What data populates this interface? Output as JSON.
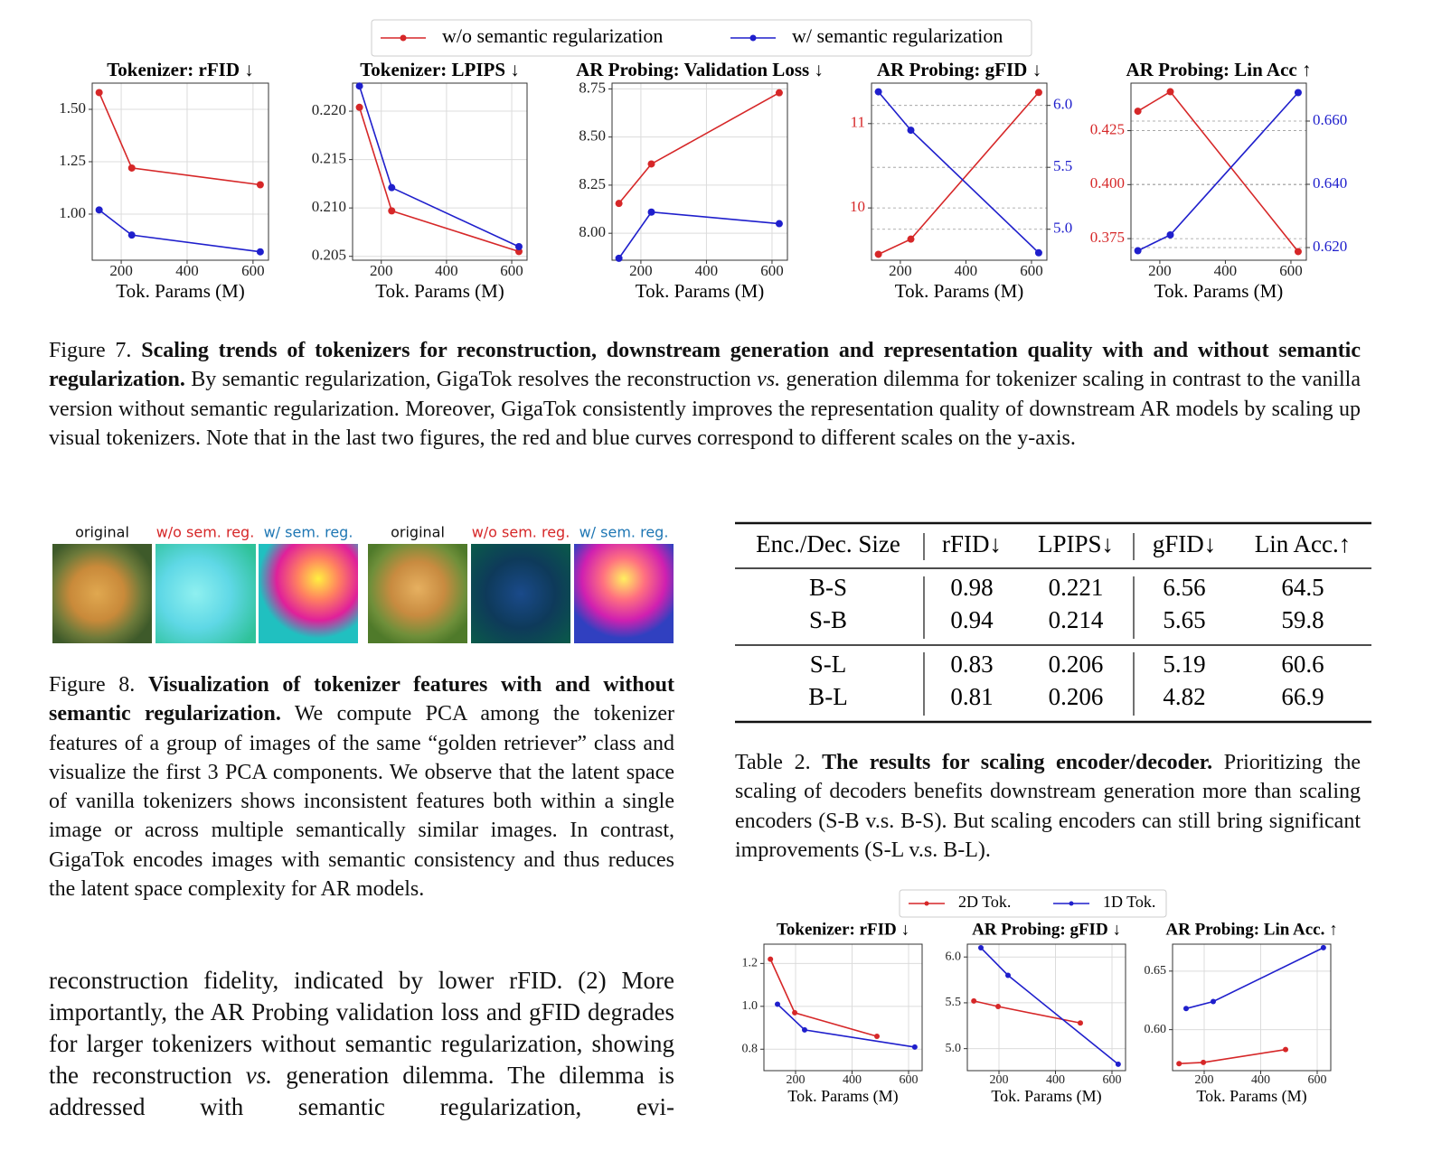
{
  "figure7": {
    "legend": [
      {
        "name": "w/o semantic regularization",
        "color": "#d62728"
      },
      {
        "name": "w/ semantic regularization",
        "color": "#1f1fcc"
      }
    ],
    "charts": [
      {
        "type": "line",
        "title": "Tokenizer: rFID ↓",
        "xlabel": "Tok. Params (M)",
        "x": [
          133,
          232,
          622
        ],
        "xlim": [
          112,
          647
        ],
        "xticks": [
          200,
          400,
          600
        ],
        "ylim": [
          0.78,
          1.625
        ],
        "yticks": [
          {
            "value": 1,
            "label": "1.00"
          },
          1.25,
          {
            "value": 1.5,
            "label": "1.50"
          }
        ],
        "grid": true,
        "series": [
          {
            "color": "#d62728",
            "values": [
              1.58,
              1.22,
              1.14
            ]
          },
          {
            "color": "#1f1fcc",
            "values": [
              1.02,
              0.9,
              0.82
            ]
          }
        ]
      },
      {
        "type": "line",
        "title": "Tokenizer: LPIPS ↓",
        "xlabel": "Tok. Params (M)",
        "x": [
          133,
          232,
          622
        ],
        "xlim": [
          112,
          647
        ],
        "xticks": [
          200,
          400,
          600
        ],
        "ylim": [
          0.2046,
          0.2229
        ],
        "yticks": [
          0.205,
          {
            "value": 0.21,
            "label": "0.210"
          },
          0.215,
          {
            "value": 0.22,
            "label": "0.220"
          }
        ],
        "grid": true,
        "series": [
          {
            "color": "#d62728",
            "values": [
              0.2204,
              0.2097,
              0.2055
            ]
          },
          {
            "color": "#1f1fcc",
            "values": [
              0.2226,
              0.2121,
              0.206
            ]
          }
        ]
      },
      {
        "type": "line",
        "title": "AR Probing: Validation Loss ↓",
        "xlabel": "Tok. Params (M)",
        "x": [
          133,
          232,
          622
        ],
        "xlim": [
          112,
          647
        ],
        "xticks": [
          200,
          400,
          600
        ],
        "ylim": [
          7.86,
          8.78
        ],
        "yticks": [
          {
            "value": 8,
            "label": "8.00"
          },
          8.25,
          {
            "value": 8.5,
            "label": "8.50"
          },
          8.75
        ],
        "grid": true,
        "series": [
          {
            "color": "#d62728",
            "values": [
              8.155,
              8.36,
              8.73
            ]
          },
          {
            "color": "#1f1fcc",
            "values": [
              7.87,
              8.11,
              8.05
            ]
          }
        ]
      },
      {
        "type": "line",
        "title": "AR Probing: gFID ↓",
        "xlabel": "Tok. Params (M)",
        "x": [
          133,
          232,
          622
        ],
        "xlim": [
          112,
          647
        ],
        "xticks": [
          200,
          400,
          600
        ],
        "ylim": [
          9.38,
          11.48
        ],
        "yticks": [
          10,
          11
        ],
        "y2lim": [
          4.75,
          6.18
        ],
        "y2ticks": [
          {
            "value": 5,
            "label": "5.0"
          },
          5.5,
          {
            "value": 6,
            "label": "6.0"
          }
        ],
        "grid": "dashed",
        "series": [
          {
            "color": "#d62728",
            "values": [
              9.45,
              9.63,
              11.37
            ]
          },
          {
            "color": "#1f1fcc",
            "axis": "y2",
            "values": [
              6.11,
              5.8,
              4.81
            ]
          }
        ]
      },
      {
        "type": "line",
        "title": "AR Probing: Lin Acc ↑",
        "xlabel": "Tok. Params (M)",
        "x": [
          133,
          232,
          622
        ],
        "xlim": [
          112,
          647
        ],
        "xticks": [
          200,
          400,
          600
        ],
        "ylim": [
          0.365,
          0.447
        ],
        "yticks": [
          0.375,
          {
            "value": 0.4,
            "label": "0.400"
          },
          0.425
        ],
        "y2lim": [
          0.616,
          0.672
        ],
        "y2ticks": [
          {
            "value": 0.62,
            "label": "0.620"
          },
          {
            "value": 0.64,
            "label": "0.640"
          },
          {
            "value": 0.66,
            "label": "0.660"
          }
        ],
        "grid": "dashed",
        "series": [
          {
            "color": "#d62728",
            "values": [
              0.434,
              0.443,
              0.369
            ]
          },
          {
            "color": "#1f1fcc",
            "axis": "y2",
            "values": [
              0.619,
              0.624,
              0.669
            ]
          }
        ]
      }
    ],
    "caption": {
      "label": "Figure 7.",
      "title": "Scaling trends of tokenizers for reconstruction, downstream generation and representation quality with and without semantic regularization.",
      "text": [
        "By semantic regularization, GigaTok resolves the reconstruction ",
        "vs.",
        " generation dilemma for tokenizer scaling in contrast to the vanilla version without semantic regularization. Moreover, GigaTok consistently improves the representation quality of downstream AR models by scaling up visual tokenizers. Note that in the last two figures, the red and blue curves correspond to different scales on the y-axis."
      ]
    }
  },
  "figure8": {
    "image_labels": [
      "original",
      "w/o sem. reg.",
      "w/ sem. reg.",
      "original",
      "w/o sem. reg.",
      "w/ sem. reg."
    ],
    "caption": {
      "label": "Figure 8.",
      "title": "Visualization of tokenizer features with and without semantic regularization.",
      "text": "We compute PCA among the tokenizer features of a group of images of the same “golden retriever” class and visualize the first 3 PCA components. We observe that the latent space of vanilla tokenizers shows inconsistent features both within a single image or across multiple semantically similar images. In contrast, GigaTok encodes images with semantic consistency and thus reduces the latent space complexity for AR models."
    }
  },
  "table2": {
    "columns": [
      "Enc./Dec. Size",
      "rFID↓",
      "LPIPS↓",
      "gFID↓",
      "Lin Acc.↑"
    ],
    "groups": [
      [
        [
          "B-S",
          "0.98",
          "0.221",
          "6.56",
          "64.5"
        ],
        [
          "S-B",
          "0.94",
          "0.214",
          "5.65",
          "59.8"
        ]
      ],
      [
        [
          "S-L",
          "0.83",
          "0.206",
          "5.19",
          "60.6"
        ],
        [
          "B-L",
          "0.81",
          "0.206",
          "4.82",
          "66.9"
        ]
      ]
    ],
    "caption": {
      "label": "Table 2.",
      "title": "The results for scaling encoder/decoder.",
      "text": "Prioritizing the scaling of decoders benefits downstream generation more than scaling encoders (S-B v.s.  B-S). But scaling encoders can still bring significant improvements (S-L v.s. B-L)."
    }
  },
  "figure9": {
    "legend": [
      {
        "name": "2D Tok.",
        "color": "#d62728"
      },
      {
        "name": "1D Tok.",
        "color": "#1f1fcc"
      }
    ],
    "charts": [
      {
        "type": "line",
        "title": "Tokenizer: rFID ↓",
        "xlabel": "Tok. Params (M)",
        "xlim": [
          88,
          648
        ],
        "xticks": [
          200,
          400,
          600
        ],
        "ylim": [
          0.7,
          1.29
        ],
        "yticks": [
          0.8,
          {
            "value": 1,
            "label": "1.0"
          },
          1.2
        ],
        "grid": true,
        "series": [
          {
            "color": "#d62728",
            "x": [
              111,
              197,
              488
            ],
            "values": [
              1.22,
              0.97,
              0.86
            ]
          },
          {
            "color": "#1f1fcc",
            "x": [
              136,
              232,
              622
            ],
            "values": [
              1.01,
              0.89,
              0.81
            ]
          }
        ]
      },
      {
        "type": "line",
        "title": "AR Probing: gFID ↓",
        "xlabel": "Tok. Params (M)",
        "xlim": [
          88,
          648
        ],
        "xticks": [
          200,
          400,
          600
        ],
        "ylim": [
          4.76,
          6.14
        ],
        "yticks": [
          {
            "value": 5,
            "label": "5.0"
          },
          5.5,
          {
            "value": 6,
            "label": "6.0"
          }
        ],
        "grid": true,
        "series": [
          {
            "color": "#d62728",
            "x": [
              111,
              197,
              488
            ],
            "values": [
              5.52,
              5.46,
              5.28
            ]
          },
          {
            "color": "#1f1fcc",
            "x": [
              136,
              232,
              622
            ],
            "values": [
              6.1,
              5.8,
              4.83
            ]
          }
        ]
      },
      {
        "type": "line",
        "title": "AR Probing: Lin Acc. ↑",
        "xlabel": "Tok. Params (M)",
        "xlim": [
          88,
          648
        ],
        "xticks": [
          200,
          400,
          600
        ],
        "ylim": [
          0.565,
          0.673
        ],
        "yticks": [
          {
            "value": 0.6,
            "label": "0.60"
          },
          0.65
        ],
        "grid": true,
        "series": [
          {
            "color": "#d62728",
            "x": [
              111,
              197,
              488
            ],
            "values": [
              0.571,
              0.572,
              0.583
            ]
          },
          {
            "color": "#1f1fcc",
            "x": [
              136,
              232,
              622
            ],
            "values": [
              0.618,
              0.624,
              0.67
            ]
          }
        ]
      }
    ]
  },
  "body": {
    "text": [
      "reconstruction fidelity, indicated by lower rFID. (2) More importantly, the AR Probing validation loss and gFID degrades for larger tokenizers without semantic regularization, showing the reconstruction ",
      "vs.",
      " generation dilemma. The dilemma is addressed with semantic regularization, evi-"
    ]
  }
}
